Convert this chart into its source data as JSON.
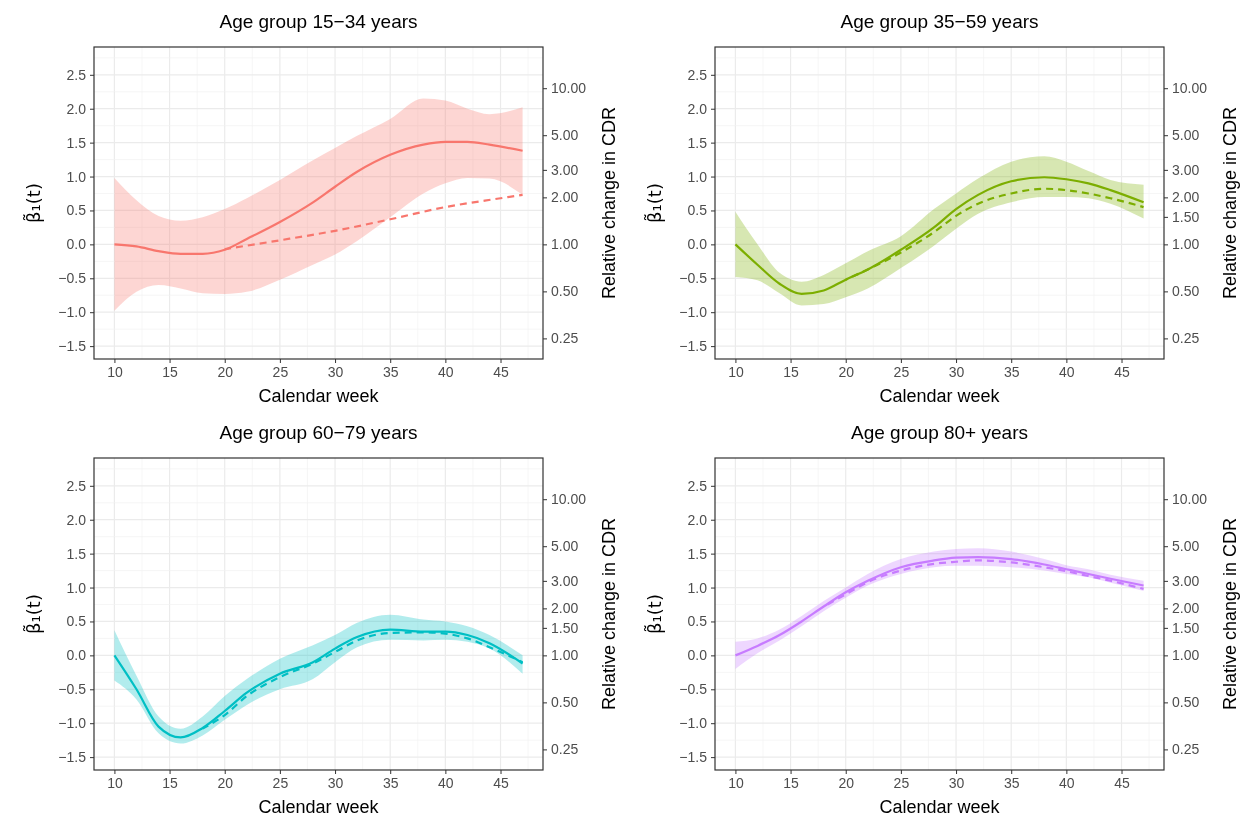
{
  "chart_data": [
    {
      "type": "line",
      "title": "Age group 15−34 years",
      "xlabel": "Calendar week",
      "ylabel": "β̃₁(t)",
      "y2label": "Relative change in CDR",
      "grid": true,
      "xlim": [
        8.15,
        48.85
      ],
      "xticks": [
        10,
        15,
        20,
        25,
        30,
        35,
        40,
        45
      ],
      "ylim": [
        -1.69,
        2.91
      ],
      "yticks": [
        {
          "value": -1.5,
          "label": "−1.5"
        },
        {
          "value": -1,
          "label": "−1.0"
        },
        {
          "value": -0.5,
          "label": "−0.5"
        },
        {
          "value": 0,
          "label": "0.0"
        },
        {
          "value": 0.5,
          "label": "0.5"
        },
        {
          "value": 1,
          "label": "1.0"
        },
        {
          "value": 1.5,
          "label": "1.5"
        },
        {
          "value": 2,
          "label": "2.0"
        },
        {
          "value": 2.5,
          "label": "2.5"
        }
      ],
      "log": "y2",
      "y2lim": [
        0.1845,
        18.36
      ],
      "y2ticks": [
        {
          "value": 0.25,
          "label": "0.25"
        },
        {
          "value": 0.5,
          "label": "0.50"
        },
        {
          "value": 1,
          "label": "1.00"
        },
        {
          "value": 2,
          "label": "2.00"
        },
        {
          "value": 3,
          "label": "3.00"
        },
        {
          "value": 5,
          "label": "5.00"
        },
        {
          "value": 10,
          "label": "10.00"
        }
      ],
      "series": [
        {
          "line_style": "solid",
          "color": "#f8766d",
          "x": [
            10,
            12,
            14,
            16,
            18,
            20,
            22,
            25,
            28,
            30,
            32,
            35,
            38,
            40,
            42,
            44,
            47
          ],
          "values": [
            0,
            -0.03,
            -0.1,
            -0.14,
            -0.14,
            -0.08,
            0.08,
            0.33,
            0.62,
            0.85,
            1.07,
            1.32,
            1.47,
            1.51,
            1.51,
            1.47,
            1.38
          ],
          "lower": [
            -0.98,
            -0.7,
            -0.6,
            -0.65,
            -0.72,
            -0.73,
            -0.7,
            -0.52,
            -0.3,
            -0.15,
            0.05,
            0.4,
            0.75,
            0.9,
            0.98,
            0.97,
            0.73
          ],
          "upper": [
            0.98,
            0.65,
            0.42,
            0.35,
            0.4,
            0.52,
            0.68,
            0.95,
            1.24,
            1.42,
            1.6,
            1.85,
            2.15,
            2.12,
            2.0,
            1.92,
            2.02
          ]
        },
        {
          "line_style": "dashed",
          "color": "#f8766d",
          "x": [
            20,
            25,
            30,
            35,
            40,
            45,
            47
          ],
          "values": [
            -0.07,
            0.06,
            0.2,
            0.37,
            0.55,
            0.68,
            0.73
          ]
        }
      ]
    },
    {
      "type": "line",
      "title": "Age group 35−59 years",
      "xlabel": "Calendar week",
      "ylabel": "β̃₁(t)",
      "y2label": "Relative change in CDR",
      "grid": true,
      "xlim": [
        8.15,
        48.85
      ],
      "xticks": [
        10,
        15,
        20,
        25,
        30,
        35,
        40,
        45
      ],
      "ylim": [
        -1.69,
        2.91
      ],
      "yticks": [
        {
          "value": -1.5,
          "label": "−1.5"
        },
        {
          "value": -1,
          "label": "−1.0"
        },
        {
          "value": -0.5,
          "label": "−0.5"
        },
        {
          "value": 0,
          "label": "0.0"
        },
        {
          "value": 0.5,
          "label": "0.5"
        },
        {
          "value": 1,
          "label": "1.0"
        },
        {
          "value": 1.5,
          "label": "1.5"
        },
        {
          "value": 2,
          "label": "2.0"
        },
        {
          "value": 2.5,
          "label": "2.5"
        }
      ],
      "log": "y2",
      "y2lim": [
        0.1845,
        18.36
      ],
      "y2ticks": [
        {
          "value": 0.25,
          "label": "0.25"
        },
        {
          "value": 0.5,
          "label": "0.50"
        },
        {
          "value": 1,
          "label": "1.00"
        },
        {
          "value": 1.5,
          "label": "1.50"
        },
        {
          "value": 2,
          "label": "2.00"
        },
        {
          "value": 3,
          "label": "3.00"
        },
        {
          "value": 5,
          "label": "5.00"
        },
        {
          "value": 10,
          "label": "10.00"
        }
      ],
      "series": [
        {
          "line_style": "solid",
          "color": "#7cae00",
          "x": [
            10,
            12,
            14,
            16,
            18,
            20,
            22,
            25,
            28,
            30,
            32,
            35,
            38,
            40,
            42,
            44,
            47
          ],
          "values": [
            0,
            -0.3,
            -0.58,
            -0.73,
            -0.68,
            -0.52,
            -0.37,
            -0.08,
            0.25,
            0.52,
            0.73,
            0.93,
            0.99,
            0.96,
            0.9,
            0.8,
            0.62
          ],
          "lower": [
            -0.48,
            -0.53,
            -0.72,
            -0.9,
            -0.88,
            -0.78,
            -0.65,
            -0.35,
            -0.02,
            0.23,
            0.45,
            0.62,
            0.7,
            0.7,
            0.68,
            0.6,
            0.38
          ],
          "upper": [
            0.48,
            0.0,
            -0.42,
            -0.55,
            -0.45,
            -0.28,
            -0.1,
            0.12,
            0.52,
            0.75,
            0.97,
            1.22,
            1.3,
            1.22,
            1.08,
            0.95,
            0.88
          ]
        },
        {
          "line_style": "dashed",
          "color": "#7cae00",
          "x": [
            20,
            22,
            25,
            28,
            30,
            32,
            35,
            38,
            40,
            42,
            44,
            47
          ],
          "values": [
            -0.52,
            -0.37,
            -0.12,
            0.18,
            0.42,
            0.6,
            0.75,
            0.82,
            0.8,
            0.75,
            0.68,
            0.55
          ]
        }
      ]
    },
    {
      "type": "line",
      "title": "Age group 60−79 years",
      "xlabel": "Calendar week",
      "ylabel": "β̃₁(t)",
      "y2label": "Relative change in CDR",
      "grid": true,
      "xlim": [
        8.15,
        48.85
      ],
      "xticks": [
        10,
        15,
        20,
        25,
        30,
        35,
        40,
        45
      ],
      "ylim": [
        -1.69,
        2.91
      ],
      "yticks": [
        {
          "value": -1.5,
          "label": "−1.5"
        },
        {
          "value": -1,
          "label": "−1.0"
        },
        {
          "value": -0.5,
          "label": "−0.5"
        },
        {
          "value": 0,
          "label": "0.0"
        },
        {
          "value": 0.5,
          "label": "0.5"
        },
        {
          "value": 1,
          "label": "1.0"
        },
        {
          "value": 1.5,
          "label": "1.5"
        },
        {
          "value": 2,
          "label": "2.0"
        },
        {
          "value": 2.5,
          "label": "2.5"
        }
      ],
      "log": "y2",
      "y2lim": [
        0.1845,
        18.36
      ],
      "y2ticks": [
        {
          "value": 0.25,
          "label": "0.25"
        },
        {
          "value": 0.5,
          "label": "0.50"
        },
        {
          "value": 1,
          "label": "1.00"
        },
        {
          "value": 1.5,
          "label": "1.50"
        },
        {
          "value": 2,
          "label": "2.00"
        },
        {
          "value": 3,
          "label": "3.00"
        },
        {
          "value": 5,
          "label": "5.00"
        },
        {
          "value": 10,
          "label": "10.00"
        }
      ],
      "series": [
        {
          "line_style": "solid",
          "color": "#00bfc4",
          "x": [
            10,
            12,
            14,
            16,
            18,
            20,
            22,
            25,
            28,
            30,
            32,
            35,
            38,
            40,
            42,
            44,
            47
          ],
          "values": [
            0,
            -0.5,
            -1.05,
            -1.21,
            -1.07,
            -0.82,
            -0.55,
            -0.27,
            -0.1,
            0.1,
            0.27,
            0.38,
            0.35,
            0.35,
            0.3,
            0.18,
            -0.12
          ],
          "lower": [
            -0.37,
            -0.65,
            -1.15,
            -1.3,
            -1.18,
            -0.95,
            -0.73,
            -0.5,
            -0.35,
            -0.1,
            0.12,
            0.23,
            0.22,
            0.23,
            0.2,
            0.1,
            -0.27
          ],
          "upper": [
            0.37,
            -0.3,
            -0.9,
            -1.08,
            -0.9,
            -0.6,
            -0.35,
            -0.05,
            0.15,
            0.3,
            0.48,
            0.6,
            0.53,
            0.5,
            0.43,
            0.3,
            0.0
          ]
        },
        {
          "line_style": "dashed",
          "color": "#00bfc4",
          "x": [
            18,
            20,
            22,
            25,
            28,
            30,
            32,
            35,
            38,
            40,
            42,
            44,
            47
          ],
          "values": [
            -1.08,
            -0.88,
            -0.6,
            -0.32,
            -0.12,
            0.05,
            0.22,
            0.33,
            0.34,
            0.32,
            0.25,
            0.12,
            -0.1
          ]
        }
      ]
    },
    {
      "type": "line",
      "title": "Age group 80+ years",
      "xlabel": "Calendar week",
      "ylabel": "β̃₁(t)",
      "y2label": "Relative change in CDR",
      "grid": true,
      "xlim": [
        8.15,
        48.85
      ],
      "xticks": [
        10,
        15,
        20,
        25,
        30,
        35,
        40,
        45
      ],
      "ylim": [
        -1.69,
        2.91
      ],
      "yticks": [
        {
          "value": -1.5,
          "label": "−1.5"
        },
        {
          "value": -1,
          "label": "−1.0"
        },
        {
          "value": -0.5,
          "label": "−0.5"
        },
        {
          "value": 0,
          "label": "0.0"
        },
        {
          "value": 0.5,
          "label": "0.5"
        },
        {
          "value": 1,
          "label": "1.0"
        },
        {
          "value": 1.5,
          "label": "1.5"
        },
        {
          "value": 2,
          "label": "2.0"
        },
        {
          "value": 2.5,
          "label": "2.5"
        }
      ],
      "log": "y2",
      "y2lim": [
        0.1845,
        18.36
      ],
      "y2ticks": [
        {
          "value": 0.25,
          "label": "0.25"
        },
        {
          "value": 0.5,
          "label": "0.50"
        },
        {
          "value": 1,
          "label": "1.00"
        },
        {
          "value": 1.5,
          "label": "1.50"
        },
        {
          "value": 2,
          "label": "2.00"
        },
        {
          "value": 3,
          "label": "3.00"
        },
        {
          "value": 5,
          "label": "5.00"
        },
        {
          "value": 10,
          "label": "10.00"
        }
      ],
      "series": [
        {
          "line_style": "solid",
          "color": "#c77cff",
          "x": [
            10,
            12,
            14,
            16,
            18,
            20,
            22,
            25,
            28,
            30,
            32,
            35,
            38,
            40,
            42,
            44,
            47
          ],
          "values": [
            0,
            0.14,
            0.3,
            0.5,
            0.72,
            0.93,
            1.1,
            1.3,
            1.4,
            1.44,
            1.45,
            1.42,
            1.34,
            1.27,
            1.2,
            1.13,
            1.03
          ],
          "lower": [
            -0.2,
            0.03,
            0.22,
            0.43,
            0.65,
            0.85,
            1.03,
            1.2,
            1.3,
            1.32,
            1.32,
            1.3,
            1.25,
            1.2,
            1.15,
            1.07,
            0.95
          ],
          "upper": [
            0.2,
            0.25,
            0.38,
            0.58,
            0.8,
            1.0,
            1.2,
            1.42,
            1.53,
            1.57,
            1.58,
            1.53,
            1.42,
            1.33,
            1.27,
            1.19,
            1.1
          ]
        },
        {
          "line_style": "dashed",
          "color": "#c77cff",
          "x": [
            18,
            20,
            22,
            25,
            28,
            30,
            32,
            35,
            38,
            40,
            42,
            44,
            47
          ],
          "values": [
            0.72,
            0.9,
            1.08,
            1.25,
            1.35,
            1.38,
            1.4,
            1.37,
            1.3,
            1.24,
            1.17,
            1.1,
            0.98
          ]
        }
      ]
    }
  ]
}
